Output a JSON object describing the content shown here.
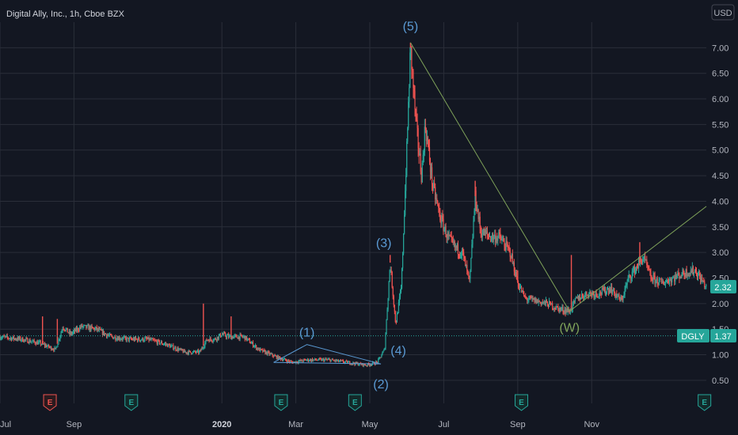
{
  "chart_data": {
    "type": "candlestick",
    "title": "Digital Ally, Inc., 1h, Cboe BZX",
    "currency": "USD",
    "y_ticks": [
      "0.50",
      "1.00",
      "1.50",
      "2.00",
      "2.50",
      "3.00",
      "3.50",
      "4.00",
      "4.50",
      "5.00",
      "5.50",
      "6.00",
      "6.50",
      "7.00"
    ],
    "y_tick_values": [
      0.5,
      1.0,
      1.5,
      2.0,
      2.5,
      3.0,
      3.5,
      4.0,
      4.5,
      5.0,
      5.5,
      6.0,
      6.5,
      7.0
    ],
    "ylim": [
      0.05,
      7.5
    ],
    "x_ticks": [
      {
        "label": "Jul",
        "month": 0,
        "bold": false
      },
      {
        "label": "Sep",
        "month": 2,
        "bold": false
      },
      {
        "label": "2020",
        "month": 6,
        "bold": true
      },
      {
        "label": "Mar",
        "month": 8,
        "bold": false
      },
      {
        "label": "May",
        "month": 10,
        "bold": false
      },
      {
        "label": "Jul",
        "month": 12,
        "bold": false
      },
      {
        "label": "Sep",
        "month": 14,
        "bold": false
      },
      {
        "label": "Nov",
        "month": 16,
        "bold": false
      }
    ],
    "xlim": [
      0.0,
      19.1
    ],
    "price_path": [
      [
        0.0,
        1.35
      ],
      [
        0.6,
        1.3
      ],
      [
        1.1,
        1.22
      ],
      [
        1.5,
        1.1
      ],
      [
        1.7,
        1.55
      ],
      [
        1.9,
        1.4
      ],
      [
        2.2,
        1.55
      ],
      [
        2.6,
        1.5
      ],
      [
        3.0,
        1.35
      ],
      [
        3.5,
        1.3
      ],
      [
        4.0,
        1.3
      ],
      [
        4.5,
        1.2
      ],
      [
        5.0,
        1.05
      ],
      [
        5.4,
        1.05
      ],
      [
        5.6,
        1.3
      ],
      [
        5.8,
        1.3
      ],
      [
        6.0,
        1.4
      ],
      [
        6.2,
        1.35
      ],
      [
        6.6,
        1.35
      ],
      [
        7.0,
        1.1
      ],
      [
        7.5,
        0.95
      ],
      [
        7.9,
        0.85
      ],
      [
        8.3,
        0.9
      ],
      [
        8.9,
        0.9
      ],
      [
        9.4,
        0.85
      ],
      [
        9.9,
        0.8
      ],
      [
        10.2,
        0.85
      ],
      [
        10.4,
        1.1
      ],
      [
        10.55,
        2.8
      ],
      [
        10.7,
        1.6
      ],
      [
        10.85,
        2.3
      ],
      [
        11.0,
        5.0
      ],
      [
        11.1,
        7.0
      ],
      [
        11.25,
        5.5
      ],
      [
        11.4,
        4.5
      ],
      [
        11.5,
        5.5
      ],
      [
        11.7,
        4.3
      ],
      [
        11.9,
        3.7
      ],
      [
        12.1,
        3.3
      ],
      [
        12.3,
        3.1
      ],
      [
        12.5,
        3.0
      ],
      [
        12.7,
        2.4
      ],
      [
        12.85,
        4.1
      ],
      [
        13.0,
        3.4
      ],
      [
        13.3,
        3.3
      ],
      [
        13.5,
        3.3
      ],
      [
        13.8,
        3.0
      ],
      [
        14.0,
        2.4
      ],
      [
        14.2,
        2.1
      ],
      [
        14.5,
        2.05
      ],
      [
        14.8,
        2.0
      ],
      [
        15.1,
        1.9
      ],
      [
        15.4,
        1.85
      ],
      [
        15.6,
        2.1
      ],
      [
        15.9,
        2.2
      ],
      [
        16.2,
        2.2
      ],
      [
        16.5,
        2.3
      ],
      [
        16.8,
        2.05
      ],
      [
        17.0,
        2.5
      ],
      [
        17.2,
        2.7
      ],
      [
        17.4,
        2.9
      ],
      [
        17.6,
        2.5
      ],
      [
        17.9,
        2.4
      ],
      [
        18.2,
        2.5
      ],
      [
        18.5,
        2.6
      ],
      [
        18.8,
        2.65
      ],
      [
        19.1,
        2.32
      ]
    ],
    "spikes": [
      {
        "m": 1.15,
        "v": 1.75
      },
      {
        "m": 1.55,
        "v": 1.7
      },
      {
        "m": 5.5,
        "v": 2.0
      },
      {
        "m": 6.25,
        "v": 1.75
      },
      {
        "m": 10.55,
        "v": 2.95
      },
      {
        "m": 11.1,
        "v": 7.1
      },
      {
        "m": 12.85,
        "v": 4.4
      },
      {
        "m": 14.0,
        "v": 2.65
      },
      {
        "m": 15.45,
        "v": 2.95
      },
      {
        "m": 17.3,
        "v": 3.2
      }
    ],
    "annotations": {
      "waves": [
        {
          "label": "(1)",
          "m": 8.3,
          "v": 1.2
        },
        {
          "label": "(2)",
          "m": 10.3,
          "v": 0.78
        },
        {
          "label": "(3)",
          "m": 10.55,
          "v": 2.95
        },
        {
          "label": "(4)",
          "m": 10.6,
          "v": 1.4
        },
        {
          "label": "(5)",
          "m": 11.1,
          "v": 7.15
        }
      ],
      "wave_w": {
        "label": "(W)",
        "m": 15.4,
        "v": 1.85
      },
      "pattern_lines": [
        [
          [
            7.4,
            0.85
          ],
          [
            8.3,
            1.2
          ],
          [
            10.3,
            0.82
          ]
        ],
        [
          [
            7.4,
            0.85
          ],
          [
            10.3,
            0.82
          ]
        ]
      ],
      "trend_lines": [
        [
          [
            11.1,
            7.1
          ],
          [
            15.4,
            1.85
          ]
        ],
        [
          [
            15.4,
            1.85
          ],
          [
            19.1,
            3.9
          ]
        ]
      ]
    },
    "reference_line": {
      "label": "DGLY",
      "value": 1.37,
      "value_label": "1.37",
      "color": "#26a69a"
    },
    "last_price": {
      "value": 2.32,
      "label": "2.32",
      "color": "#26a69a"
    },
    "events": [
      {
        "label": "E",
        "m": 1.35,
        "kind": "red"
      },
      {
        "label": "E",
        "m": 3.55,
        "kind": "green"
      },
      {
        "label": "E",
        "m": 7.6,
        "kind": "green"
      },
      {
        "label": "E",
        "m": 9.6,
        "kind": "green"
      },
      {
        "label": "E",
        "m": 14.1,
        "kind": "green"
      },
      {
        "label": "E",
        "m": 19.05,
        "kind": "green"
      }
    ],
    "colors": {
      "up": "#26a69a",
      "down": "#ef5350",
      "wave": "#5b9bd5",
      "trend": "#7fa35a",
      "grid": "#2a2e39"
    }
  }
}
